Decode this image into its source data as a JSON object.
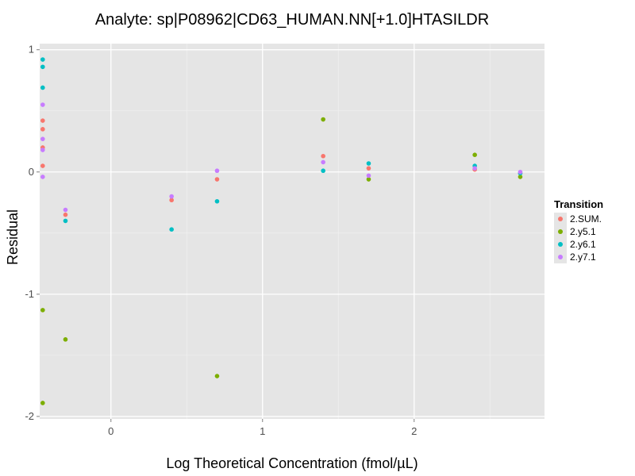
{
  "chart_data": {
    "type": "scatter",
    "title": "Analyte: sp|P08962|CD63_HUMAN.NN[+1.0]HTASILDR",
    "xlabel": "Log Theoretical Concentration (fmol/µL)",
    "ylabel": "Residual",
    "xlim": [
      -0.47,
      2.86
    ],
    "ylim": [
      -2.02,
      1.05
    ],
    "x_ticks": [
      0,
      1,
      2
    ],
    "y_ticks": [
      1,
      0,
      -1,
      -2
    ],
    "grid": true,
    "legend_title": "Transition",
    "legend_position": "right",
    "series": [
      {
        "name": "2.SUM.",
        "color": "#f8766d",
        "x": [
          -0.45,
          -0.45,
          -0.45,
          -0.45,
          -0.3,
          0.4,
          0.7,
          1.4,
          1.7,
          2.4,
          2.7
        ],
        "y": [
          0.42,
          0.35,
          0.2,
          0.05,
          -0.35,
          -0.23,
          -0.06,
          0.13,
          0.03,
          0.02,
          -0.01
        ]
      },
      {
        "name": "2.y5.1",
        "color": "#7cae00",
        "x": [
          -0.45,
          -0.45,
          -0.3,
          0.7,
          1.4,
          1.7,
          2.4,
          2.7
        ],
        "y": [
          -1.13,
          -1.89,
          -1.37,
          -1.67,
          0.43,
          -0.06,
          0.14,
          -0.04
        ]
      },
      {
        "name": "2.y6.1",
        "color": "#00bfc4",
        "x": [
          -0.45,
          -0.45,
          -0.45,
          -0.3,
          0.4,
          0.7,
          1.4,
          1.7,
          2.4,
          2.7
        ],
        "y": [
          0.92,
          0.86,
          0.69,
          -0.4,
          -0.47,
          -0.24,
          0.01,
          0.07,
          0.05,
          -0.01
        ]
      },
      {
        "name": "2.y7.1",
        "color": "#c77cff",
        "x": [
          -0.45,
          -0.45,
          -0.45,
          -0.45,
          -0.3,
          0.4,
          0.7,
          1.4,
          1.7,
          2.4,
          2.7
        ],
        "y": [
          0.55,
          0.27,
          0.18,
          -0.04,
          -0.31,
          -0.2,
          0.01,
          0.08,
          -0.03,
          0.03,
          0.0
        ]
      }
    ]
  }
}
